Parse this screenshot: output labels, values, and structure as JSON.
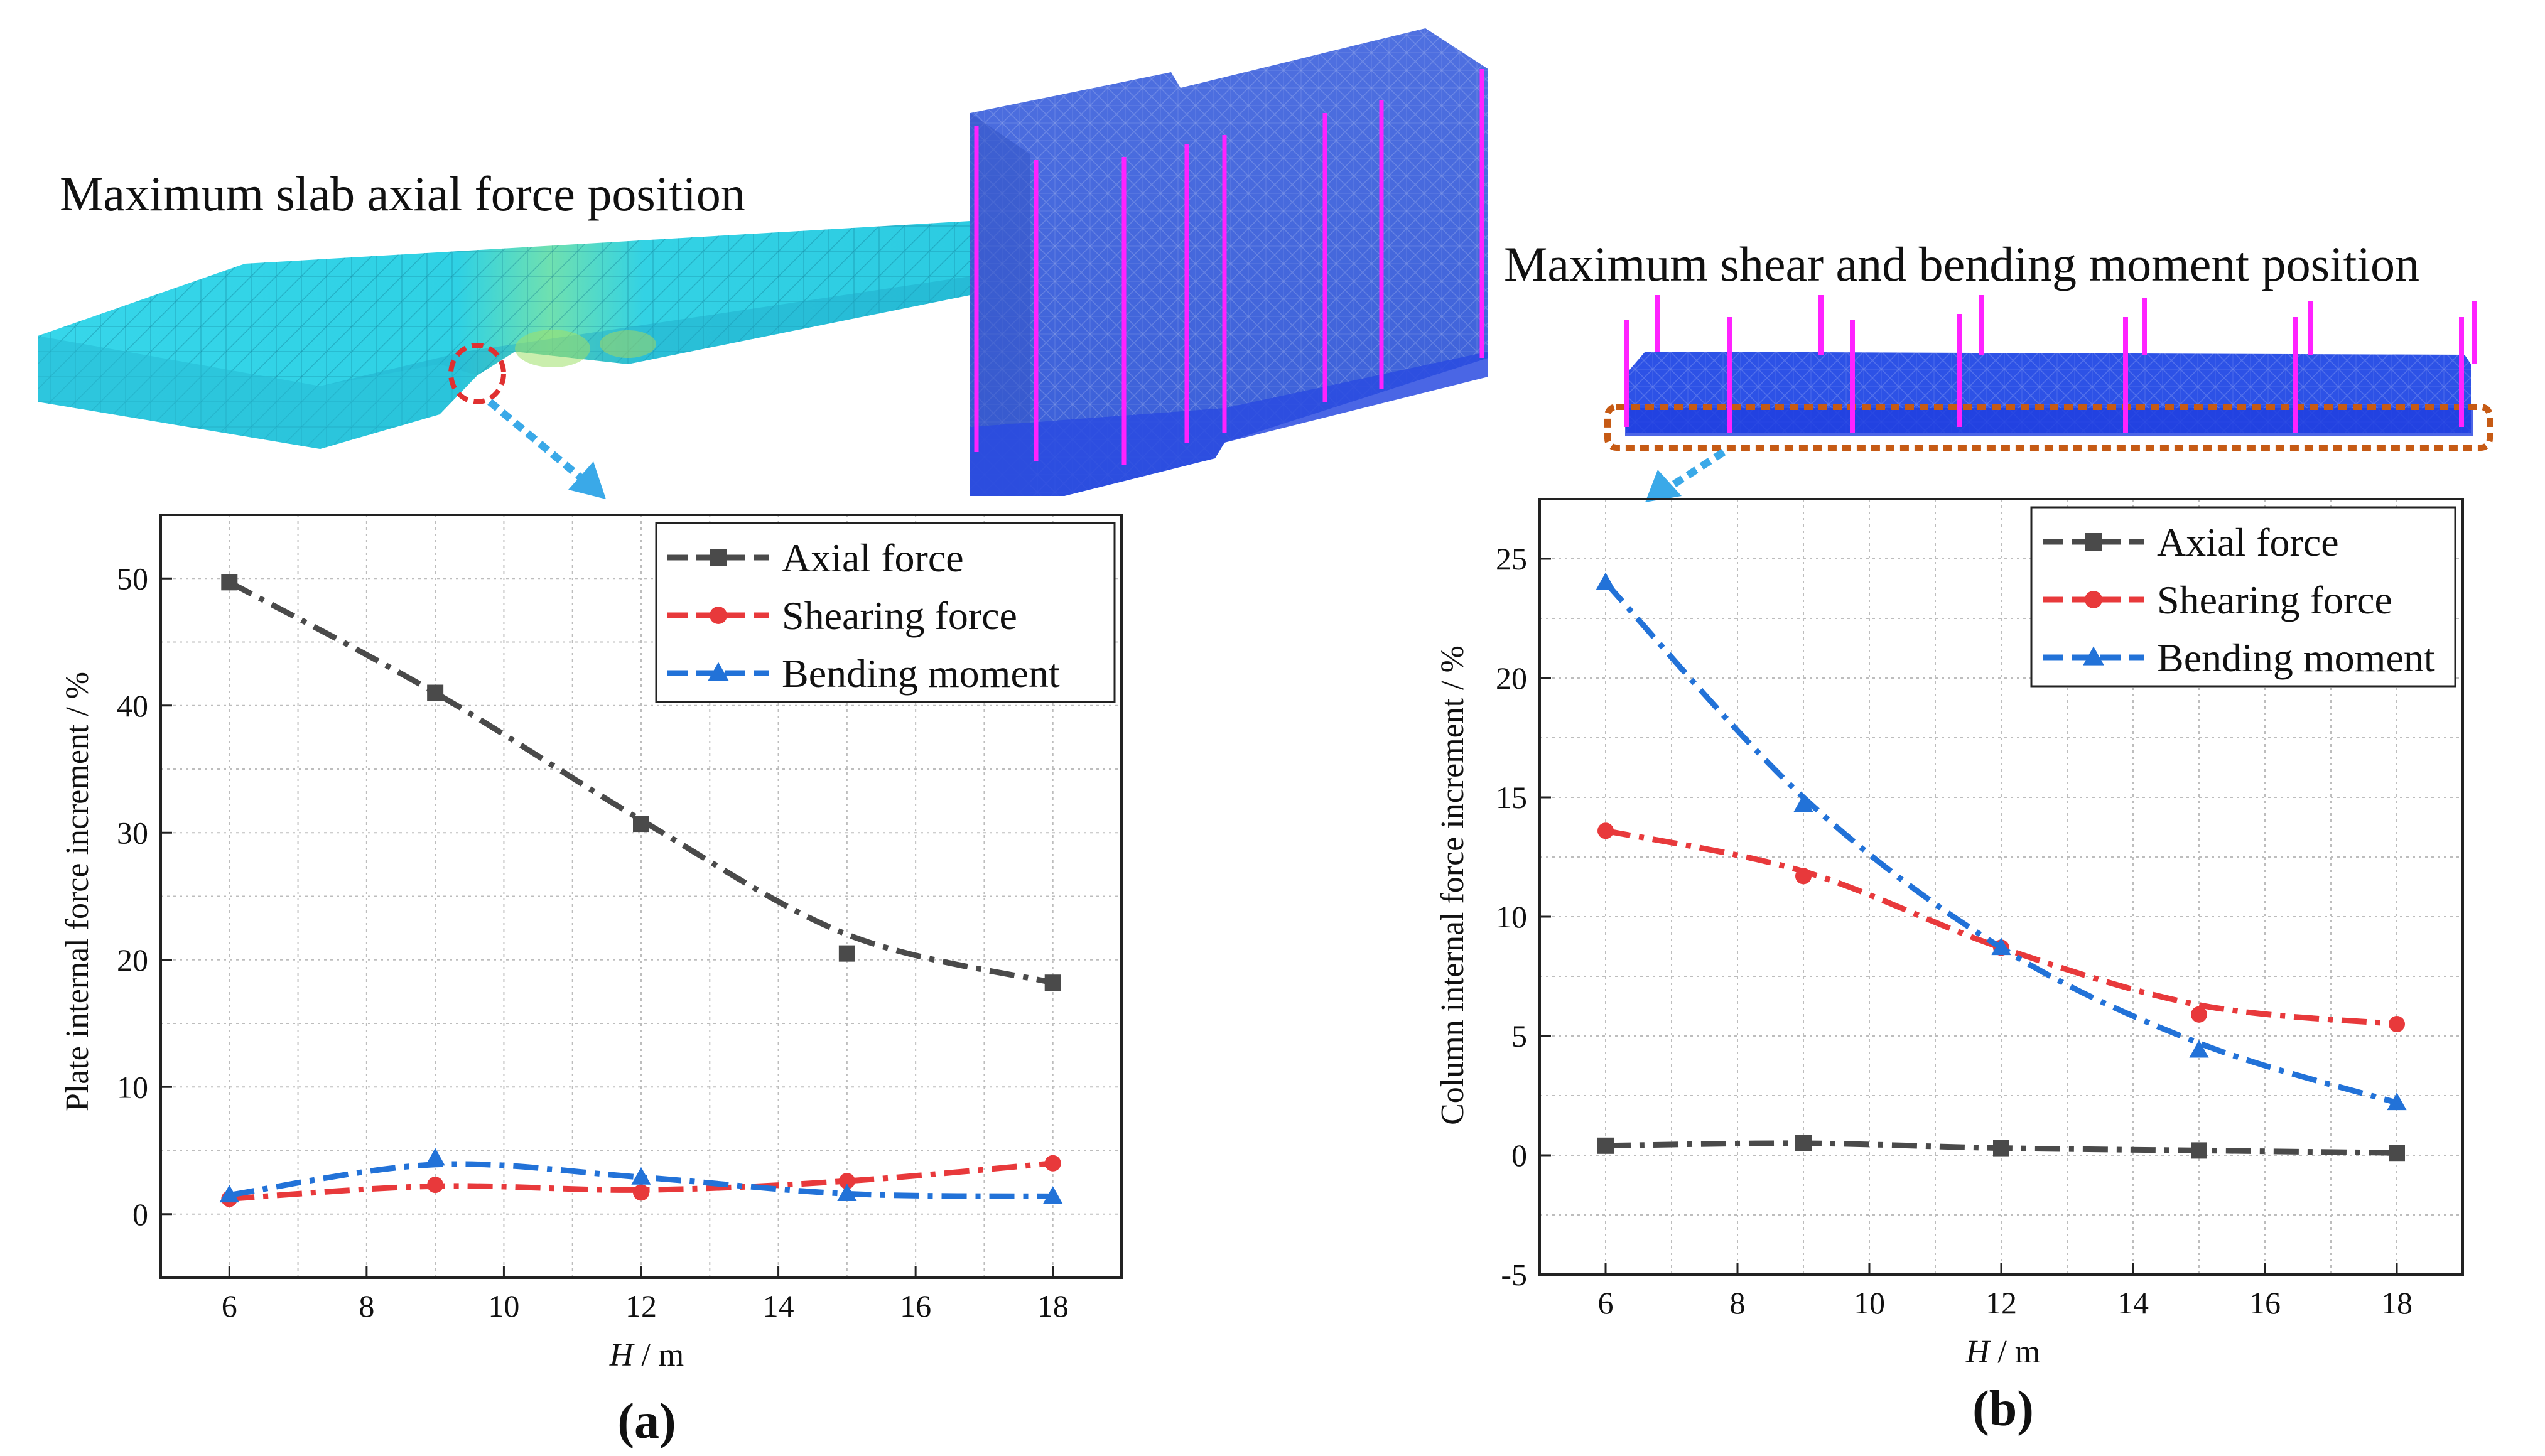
{
  "images": {
    "slab_caption": "Maximum slab axial force position",
    "column_caption": "Maximum shear and bending moment position"
  },
  "colors": {
    "axial": "#4a4a4a",
    "shear": "#e8393b",
    "bending": "#2272d8",
    "marker_ring": "#e03030",
    "arrow": "#3aa9e8",
    "column_magenta": "#ff22ff",
    "slab_cyan": "#27d3e6",
    "building_blue": "#3f63d8",
    "highlight_box": "#c65a14"
  },
  "chart_data": [
    {
      "type": "line",
      "panel_label": "(a)",
      "xlabel_var": "H",
      "xlabel_unit": " / m",
      "ylabel": "Plate internal force increment / %",
      "xlim": [
        5,
        19
      ],
      "ylim": [
        -5,
        55
      ],
      "xticks": [
        6,
        8,
        10,
        12,
        14,
        16,
        18
      ],
      "yticks": [
        0,
        10,
        20,
        30,
        40,
        50
      ],
      "grid": true,
      "legend_position": "top-right",
      "x": [
        6,
        9,
        12,
        15,
        18
      ],
      "series": [
        {
          "name": "Axial force",
          "marker": "square",
          "values": [
            49.7,
            41.0,
            30.7,
            20.5,
            18.2
          ],
          "curve": [
            49.7,
            41.0,
            31.0,
            22.0,
            18.2
          ]
        },
        {
          "name": "Shearing force",
          "marker": "circle",
          "values": [
            1.2,
            2.3,
            1.7,
            2.6,
            4.0
          ],
          "curve": [
            1.2,
            2.2,
            1.9,
            2.6,
            4.0
          ]
        },
        {
          "name": "Bending moment",
          "marker": "triangle",
          "values": [
            1.5,
            4.4,
            2.9,
            1.6,
            1.4
          ],
          "curve": [
            1.5,
            3.9,
            2.9,
            1.6,
            1.4
          ]
        }
      ]
    },
    {
      "type": "line",
      "panel_label": "(b)",
      "xlabel_var": "H",
      "xlabel_unit": " / m",
      "ylabel": "Column internal force increment / %",
      "xlim": [
        5,
        19
      ],
      "ylim": [
        -5,
        27.5
      ],
      "xticks": [
        6,
        8,
        10,
        12,
        14,
        16,
        18
      ],
      "yticks": [
        -5,
        0,
        5,
        10,
        15,
        20,
        25
      ],
      "grid": true,
      "legend_position": "top-right",
      "x": [
        6,
        9,
        12,
        15,
        18
      ],
      "series": [
        {
          "name": "Axial force",
          "marker": "square",
          "values": [
            0.4,
            0.5,
            0.3,
            0.2,
            0.1
          ],
          "curve": [
            0.4,
            0.5,
            0.3,
            0.2,
            0.1
          ]
        },
        {
          "name": "Shearing force",
          "marker": "circle",
          "values": [
            13.6,
            11.7,
            8.7,
            5.9,
            5.5
          ],
          "curve": [
            13.6,
            11.9,
            8.7,
            6.3,
            5.5
          ]
        },
        {
          "name": "Bending moment",
          "marker": "triangle",
          "values": [
            24.0,
            14.7,
            8.7,
            4.4,
            2.2
          ],
          "curve": [
            24.0,
            15.0,
            8.7,
            4.7,
            2.2
          ]
        }
      ]
    }
  ]
}
